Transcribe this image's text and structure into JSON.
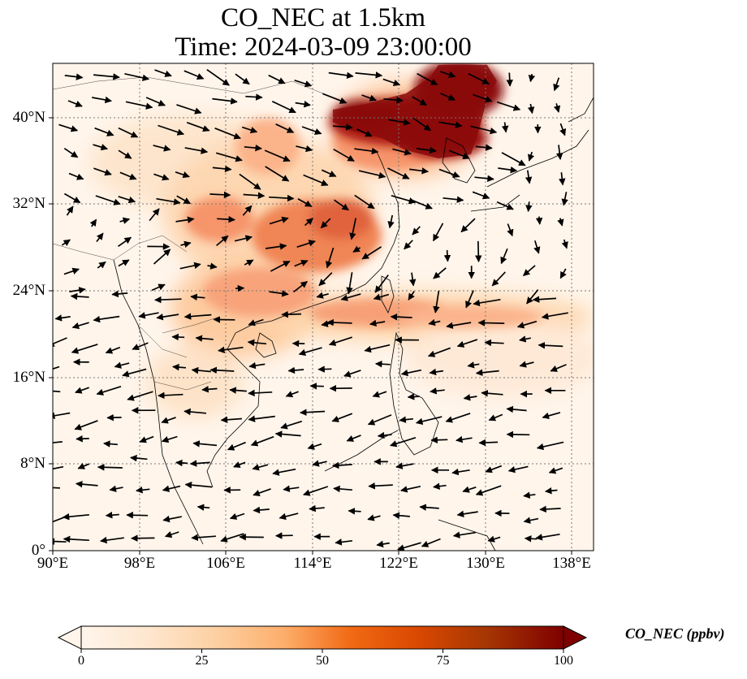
{
  "title": {
    "line1": "CO_NEC at 1.5km",
    "line2": "Time: 2024-03-09 23:00:00"
  },
  "map": {
    "lon_range": [
      90,
      140
    ],
    "lat_range": [
      0,
      45
    ],
    "lat_ticks": [
      "40°N",
      "32°N",
      "24°N",
      "16°N",
      "8°N",
      "0°"
    ],
    "lon_ticks": [
      "90°E",
      "98°E",
      "106°E",
      "114°E",
      "122°E",
      "130°E",
      "138°E"
    ],
    "gridlines": "dotted",
    "field": "CO_NEC concentration at 1.5km",
    "vectors": "wind arrows"
  },
  "colorbar": {
    "label": "CO_NEC (ppbv)",
    "ticks": [
      "0",
      "25",
      "50",
      "75",
      "100"
    ],
    "min": 0,
    "max": 100,
    "colormap": [
      "#fff5eb",
      "#fdd9b4",
      "#fdb07a",
      "#f67f4b",
      "#e2543e",
      "#bf2a1d",
      "#8d0c0c",
      "#7f0000"
    ],
    "extend": "both"
  }
}
